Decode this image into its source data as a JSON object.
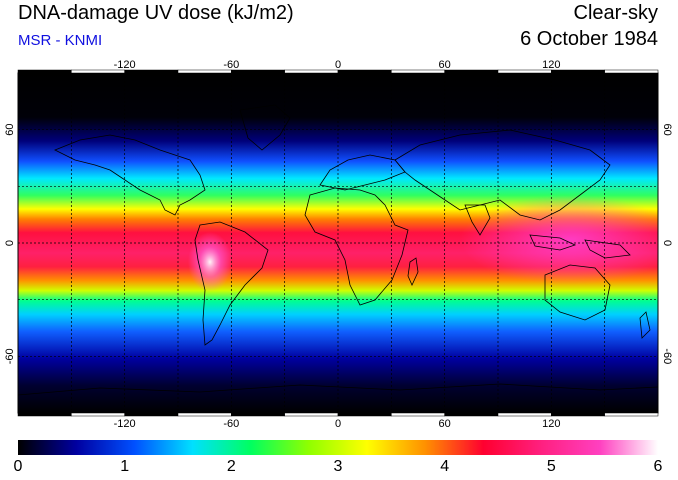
{
  "header": {
    "title": "DNA-damage UV dose (kJ/m2)",
    "subtitle": "MSR - KNMI",
    "condition": "Clear-sky",
    "date": "6 October 1984"
  },
  "map": {
    "lon_ticks": [
      "-120",
      "-60",
      "0",
      "60",
      "120"
    ],
    "lat_ticks": [
      "60",
      "0",
      "-60"
    ]
  },
  "colorbar": {
    "ticks": [
      "0",
      "1",
      "2",
      "3",
      "4",
      "5",
      "6"
    ],
    "colors": [
      "#000000",
      "#0000a0",
      "#0050ff",
      "#00e0ff",
      "#00ff60",
      "#90ff00",
      "#ffff00",
      "#ff9000",
      "#ff0030",
      "#ff2080",
      "#ff40c0",
      "#ffffff"
    ]
  }
}
